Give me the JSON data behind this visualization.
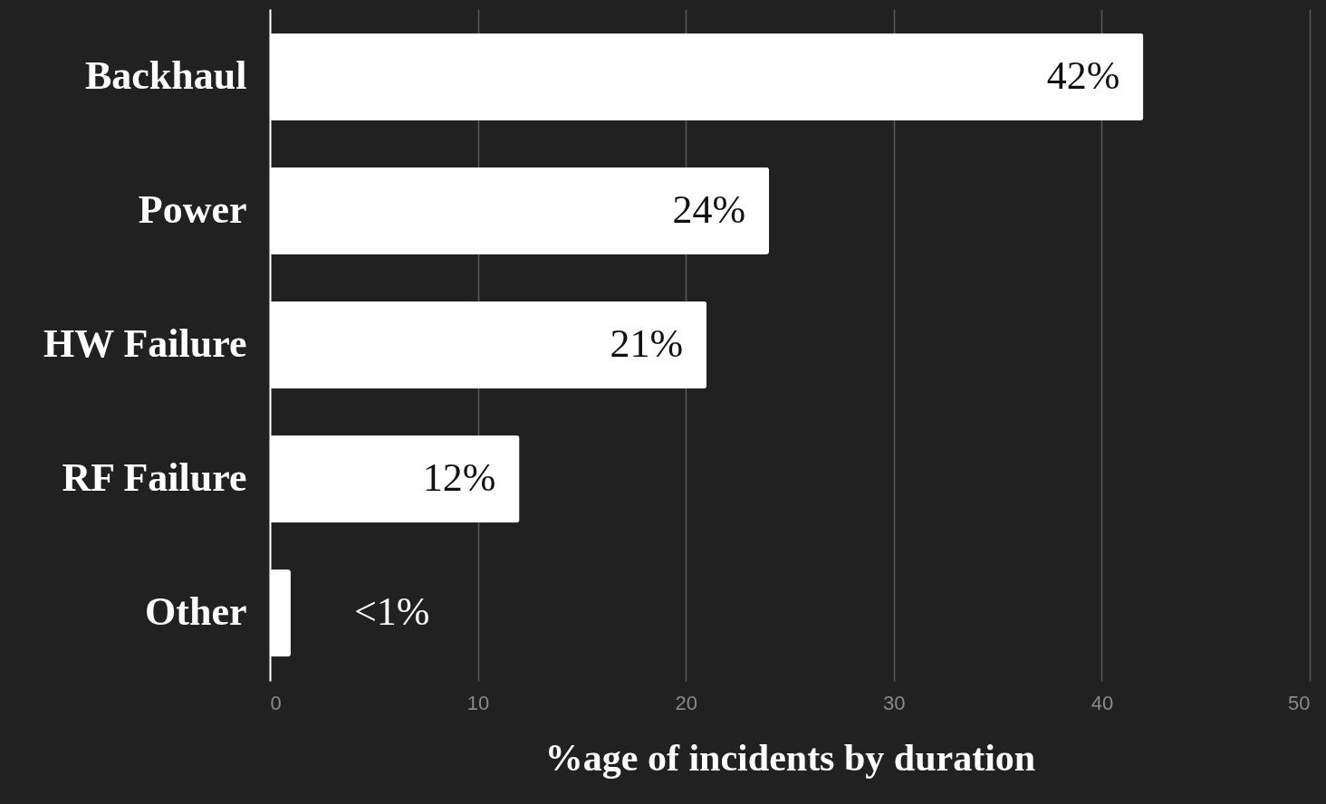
{
  "chart_data": {
    "type": "bar",
    "orientation": "horizontal",
    "xlabel": "%age of incidents by duration",
    "categories": [
      "Backhaul",
      "Power",
      "HW Failure",
      "RF Failure",
      "Other"
    ],
    "values": [
      42,
      24,
      21,
      12,
      1
    ],
    "value_labels": [
      "42%",
      "24%",
      "21%",
      "12%",
      "<1%"
    ],
    "color": "#ffffff",
    "xlim": [
      0,
      50
    ],
    "xticks": [
      0,
      10,
      20,
      30,
      40,
      50
    ],
    "grid": "x"
  }
}
